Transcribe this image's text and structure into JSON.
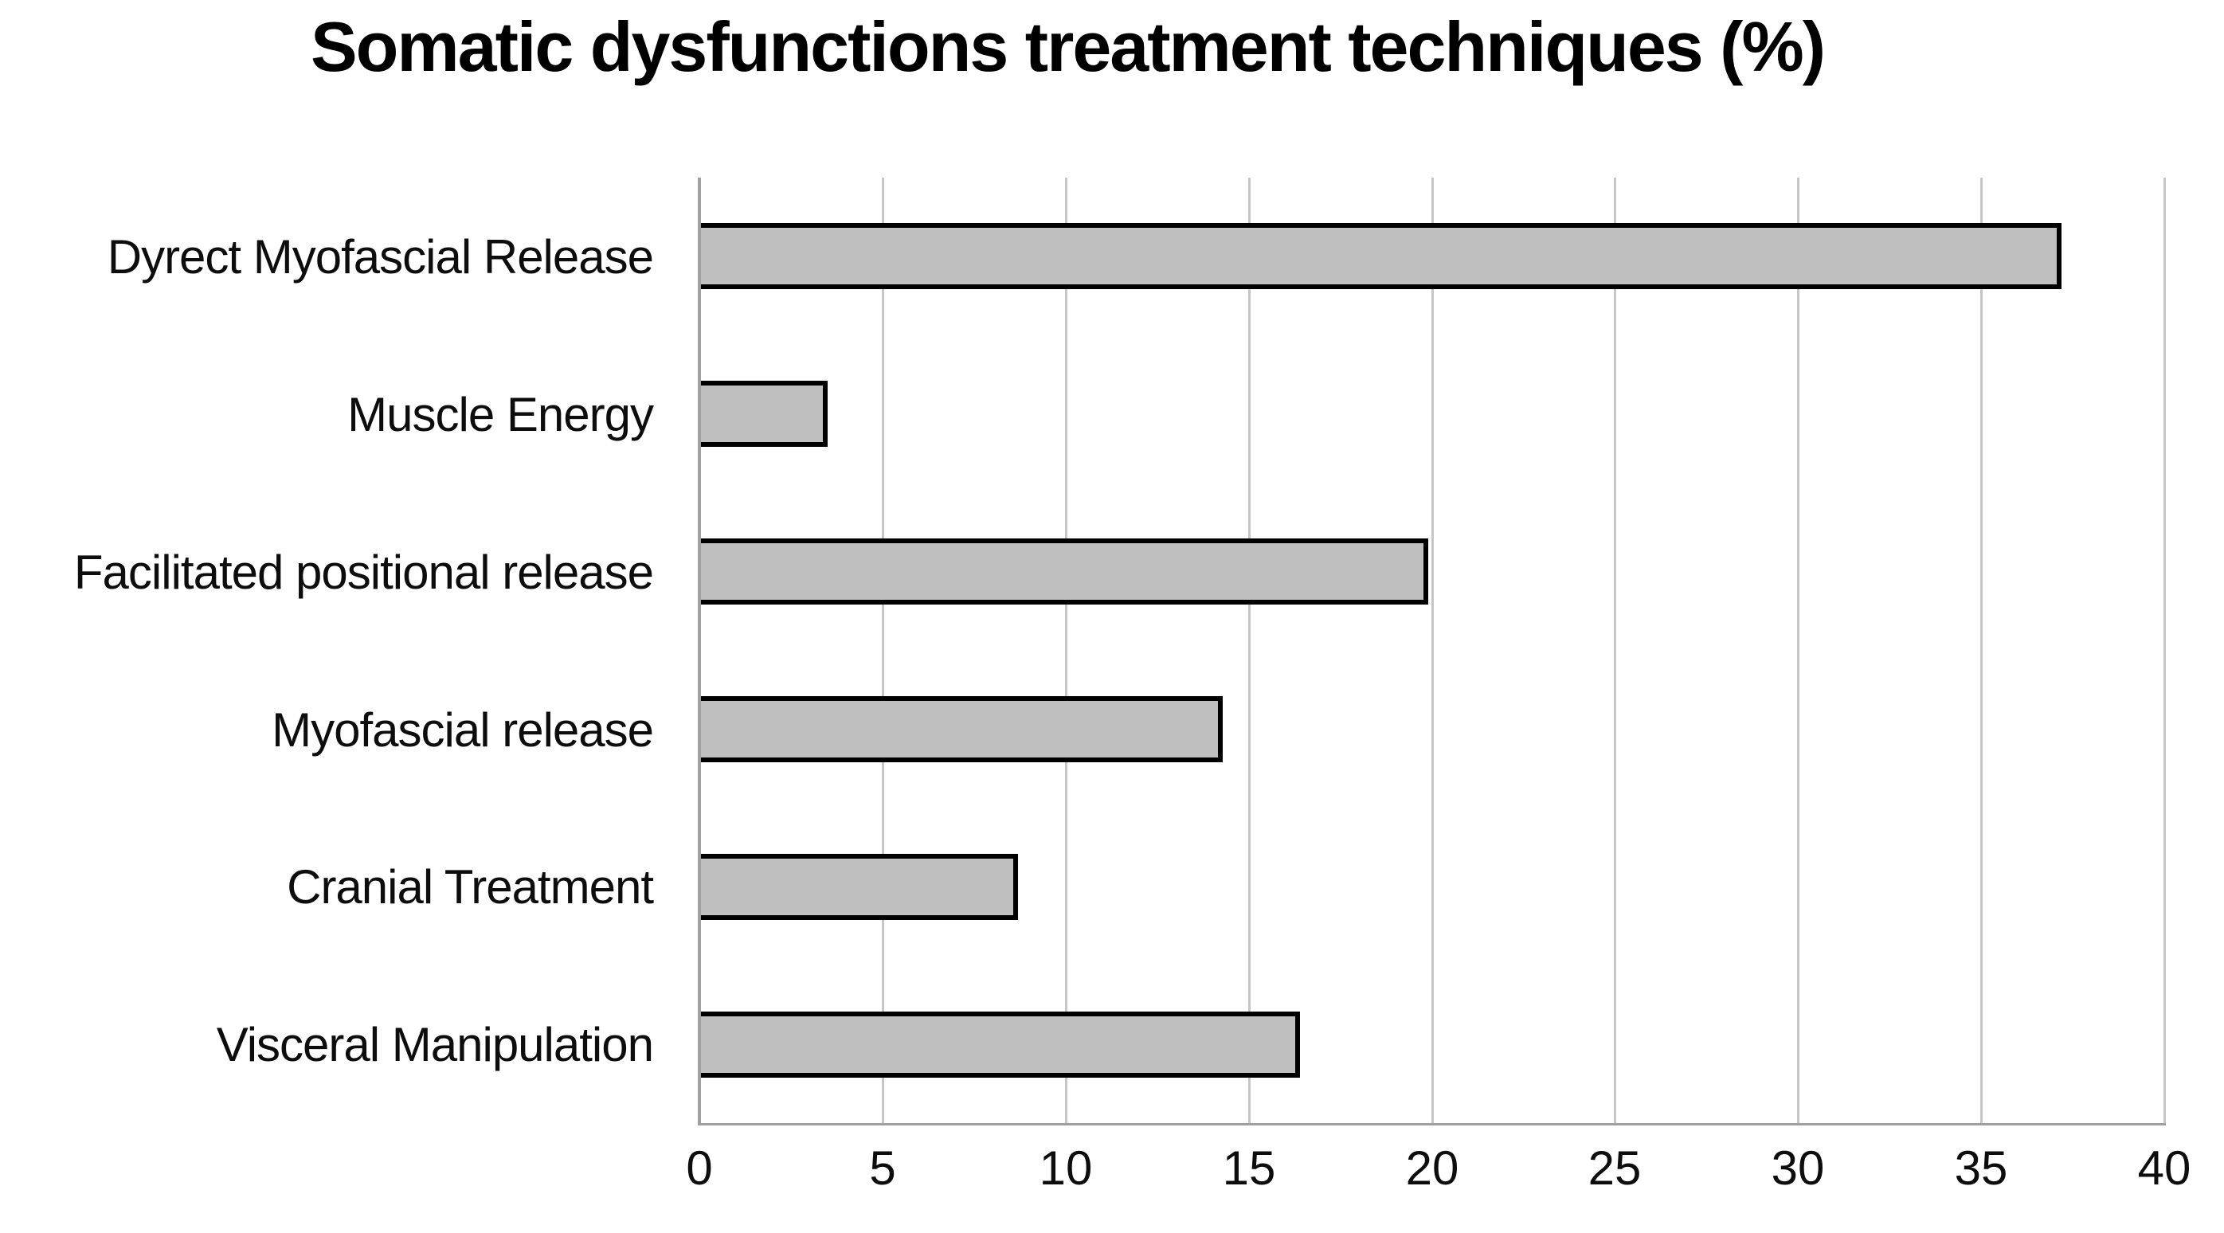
{
  "chart_data": {
    "type": "bar",
    "orientation": "horizontal",
    "title": "Somatic dysfunctions treatment techniques (%)",
    "categories": [
      "Dyrect Myofascial Release",
      "Muscle Energy",
      "Facilitated positional release",
      "Myofascial release",
      "Cranial Treatment",
      "Visceral Manipulation"
    ],
    "values": [
      37.2,
      3.5,
      19.9,
      14.3,
      8.7,
      16.4
    ],
    "xlabel": "",
    "ylabel": "",
    "xlim": [
      0,
      40
    ],
    "x_ticks": [
      0,
      5,
      10,
      15,
      20,
      25,
      30,
      35,
      40
    ],
    "grid": "vertical-gridlines-on",
    "legend": "none"
  },
  "colors": {
    "background": "#ffffff",
    "bar_fill": "#bfbfbf",
    "bar_border": "#000000",
    "gridline": "#c6c6c6",
    "axis_line": "#a0a0a0",
    "text": "#0d0d0d"
  }
}
